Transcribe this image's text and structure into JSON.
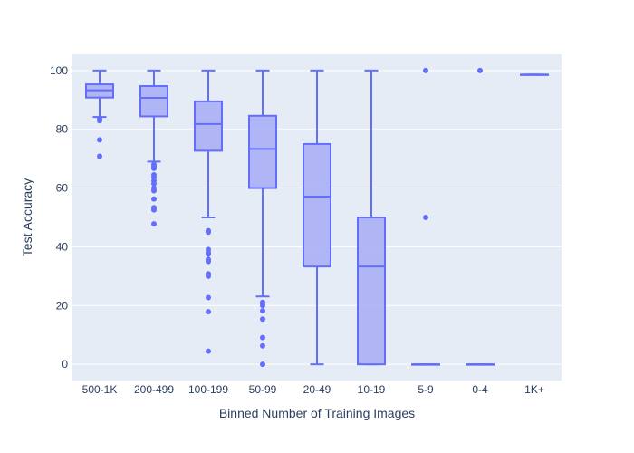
{
  "chart_data": {
    "type": "box",
    "xlabel": "Binned Number of Training Images",
    "ylabel": "Test Accuracy",
    "ylim": [
      -5.5,
      105.5
    ],
    "yticks": [
      0,
      20,
      40,
      60,
      80,
      100
    ],
    "grid": true,
    "colors": {
      "box_line": "#636efa",
      "box_fill": "#a6abf4",
      "plot_bg": "#e5ecf6",
      "grid": "#ffffff",
      "text": "#2a3f5f"
    },
    "categories": [
      "500-1K",
      "200-499",
      "100-199",
      "50-99",
      "20-49",
      "10-19",
      "5-9",
      "0-4",
      "1K+"
    ],
    "boxes": [
      {
        "category": "500-1K",
        "q1": 90.8,
        "median": 93.3,
        "q3": 95.3,
        "lower_fence": 84.2,
        "upper_fence": 100,
        "outliers": [
          83.5,
          82.9,
          76.4,
          70.8
        ]
      },
      {
        "category": "200-499",
        "q1": 84.4,
        "median": 90.7,
        "q3": 94.7,
        "lower_fence": 69.0,
        "upper_fence": 100,
        "outliers": [
          68.0,
          67.3,
          66.7,
          64.5,
          63.6,
          62.5,
          61.5,
          60.0,
          59.1,
          56.3,
          53.3,
          52.6,
          47.8
        ]
      },
      {
        "category": "100-199",
        "q1": 72.7,
        "median": 81.8,
        "q3": 89.5,
        "lower_fence": 50.0,
        "upper_fence": 100,
        "outliers": [
          45.5,
          45.0,
          39.1,
          38.1,
          37.5,
          35.7,
          35.0,
          30.8,
          30.0,
          22.7,
          17.9,
          4.5
        ]
      },
      {
        "category": "50-99",
        "q1": 60.0,
        "median": 73.3,
        "q3": 84.6,
        "lower_fence": 23.1,
        "upper_fence": 100,
        "outliers": [
          21.1,
          20.0,
          18.2,
          15.4,
          9.1,
          6.3,
          0.0
        ]
      },
      {
        "category": "20-49",
        "q1": 33.3,
        "median": 57.1,
        "q3": 75.0,
        "lower_fence": 0,
        "upper_fence": 100,
        "outliers": []
      },
      {
        "category": "10-19",
        "q1": 0,
        "median": 33.3,
        "q3": 50.0,
        "lower_fence": 0,
        "upper_fence": 100,
        "outliers": []
      },
      {
        "category": "5-9",
        "q1": 0,
        "median": 0,
        "q3": 0,
        "lower_fence": 0,
        "upper_fence": 0,
        "outliers": [
          100,
          50
        ]
      },
      {
        "category": "0-4",
        "q1": 0,
        "median": 0,
        "q3": 0,
        "lower_fence": 0,
        "upper_fence": 0,
        "outliers": [
          100
        ]
      },
      {
        "category": "1K+",
        "q1": 98.6,
        "median": 98.6,
        "q3": 98.6,
        "lower_fence": 98.6,
        "upper_fence": 98.6,
        "outliers": []
      }
    ]
  }
}
